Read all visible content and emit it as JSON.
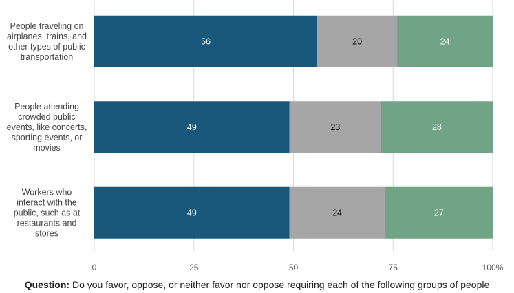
{
  "chart_data": {
    "type": "bar",
    "orientation": "horizontal",
    "stacked": true,
    "categories": [
      [
        "People traveling on",
        "airplanes, trains, and",
        "other types of public",
        "transportation"
      ],
      [
        "People attending",
        "crowded public",
        "events, like concerts,",
        "sporting events, or",
        "movies"
      ],
      [
        "Workers who",
        "interact with the",
        "public, such as at",
        "restaurants and",
        "stores"
      ]
    ],
    "series": [
      {
        "values": [
          56,
          49,
          49
        ],
        "color": "#19587a",
        "label_color": "#ffffff"
      },
      {
        "values": [
          20,
          23,
          24
        ],
        "color": "#a6a6a6",
        "label_color": "#000000"
      },
      {
        "values": [
          24,
          28,
          27
        ],
        "color": "#71a486",
        "label_color": "#ffffff"
      }
    ],
    "xlim": [
      0,
      100
    ],
    "xticks": [
      "0",
      "25",
      "50",
      "75",
      "100%"
    ],
    "xtick_values": [
      0,
      25,
      50,
      75,
      100
    ],
    "grid": true,
    "gridline_color": "#d9d9d9",
    "title": "",
    "xlabel": "",
    "ylabel": ""
  },
  "question": {
    "label": "Question:",
    "text": "Do you favor, oppose, or neither favor nor oppose requiring each of the following groups of people"
  }
}
